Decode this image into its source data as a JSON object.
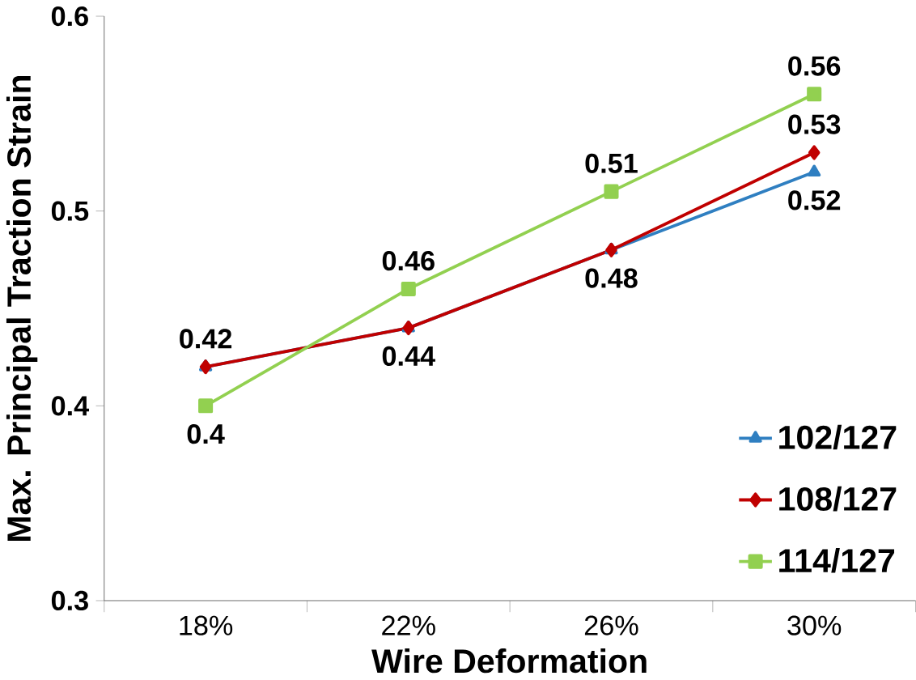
{
  "chart_data": {
    "type": "line",
    "xlabel": "Wire Deformation",
    "ylabel": "Max. Principal Traction Strain",
    "categories": [
      "18%",
      "22%",
      "26%",
      "30%"
    ],
    "ylim": [
      0.3,
      0.6
    ],
    "yticks": [
      0.3,
      0.4,
      0.5,
      0.6
    ],
    "grid": false,
    "legend": "bottom right",
    "series": [
      {
        "name": "102/127",
        "color": "#2f7fc1",
        "marker": "triangle",
        "values": [
          0.42,
          0.44,
          0.48,
          0.52
        ],
        "value_labels": [
          null,
          null,
          null,
          "0.52"
        ]
      },
      {
        "name": "108/127",
        "color": "#c00000",
        "marker": "diamond",
        "values": [
          0.42,
          0.44,
          0.48,
          0.53
        ],
        "value_labels": [
          "0.42",
          "0.44",
          "0.48",
          "0.53"
        ]
      },
      {
        "name": "114/127",
        "color": "#92d050",
        "marker": "square",
        "values": [
          0.4,
          0.46,
          0.51,
          0.56
        ],
        "value_labels": [
          "0.4",
          "0.46",
          "0.51",
          "0.56"
        ]
      }
    ]
  }
}
